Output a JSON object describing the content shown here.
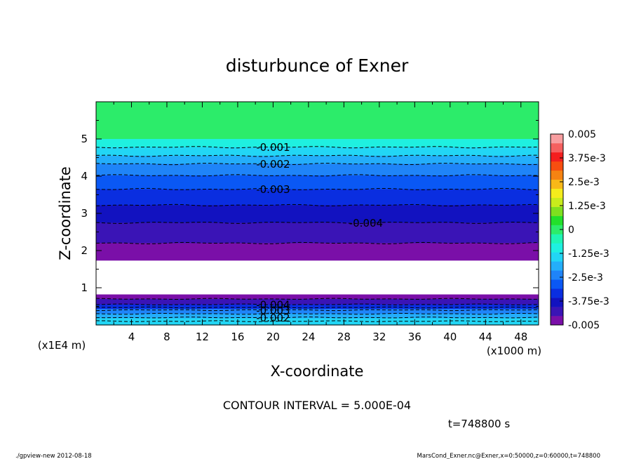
{
  "chart_data": {
    "type": "contour",
    "title": "disturbunce of Exner",
    "xlabel": "X-coordinate",
    "ylabel": "Z-coordinate",
    "x_unit_label": "(x1000 m)",
    "y_unit_label": "(x1E4 m)",
    "xlim": [
      0,
      50
    ],
    "ylim": [
      0,
      6
    ],
    "x_ticks": [
      4,
      8,
      12,
      16,
      20,
      24,
      28,
      32,
      36,
      40,
      44,
      48
    ],
    "y_ticks": [
      1,
      2,
      3,
      4,
      5
    ],
    "contour_interval_text": "CONTOUR INTERVAL = 5.000E-04",
    "time_text": "t=748800 s",
    "footer_left": "./gpview-new   2012-08-18",
    "footer_right": "MarsCond_Exner.nc@Exner,x=0:50000,z=0:60000,t=748800",
    "colorbar": {
      "min": -0.005,
      "max": 0.005,
      "tick_labels": [
        "0.005",
        "3.75e-3",
        "2.5e-3",
        "1.25e-3",
        "0",
        "-1.25e-3",
        "-2.5e-3",
        "-3.75e-3",
        "-0.005"
      ],
      "colors": [
        "#7a0fa8",
        "#3a14b6",
        "#1212c0",
        "#0a2ee0",
        "#0a58f4",
        "#1f84f8",
        "#24aefa",
        "#22d6f5",
        "#1ff0e0",
        "#1ff5b4",
        "#2cec6a",
        "#22e02a",
        "#7fe01f",
        "#c8ec1c",
        "#f4ec1c",
        "#f8b818",
        "#f68312",
        "#f84e10",
        "#f41e1e",
        "#f5605f",
        "#f89ea0"
      ]
    },
    "bands": [
      {
        "z": [
          5.0,
          6.0
        ],
        "value": 0.0
      },
      {
        "z": [
          4.78,
          5.0
        ],
        "value": -0.00075
      },
      {
        "z": [
          4.55,
          4.78
        ],
        "value": -0.00125
      },
      {
        "z": [
          4.33,
          4.55
        ],
        "value": -0.00175
      },
      {
        "z": [
          4.02,
          4.33
        ],
        "value": -0.00225
      },
      {
        "z": [
          3.65,
          4.02
        ],
        "value": -0.00275
      },
      {
        "z": [
          3.22,
          3.65
        ],
        "value": -0.00325
      },
      {
        "z": [
          2.75,
          3.22
        ],
        "value": -0.00375
      },
      {
        "z": [
          2.2,
          2.75
        ],
        "value": -0.00425
      },
      {
        "z": [
          1.73,
          2.2
        ],
        "value": -0.00475
      },
      {
        "z": [
          0.82,
          1.73
        ],
        "value": null
      },
      {
        "z": [
          0.7,
          0.82
        ],
        "value": -0.00475
      },
      {
        "z": [
          0.55,
          0.7
        ],
        "value": -0.00425
      },
      {
        "z": [
          0.43,
          0.55
        ],
        "value": -0.00325
      },
      {
        "z": [
          0.3,
          0.43
        ],
        "value": -0.00225
      },
      {
        "z": [
          0.18,
          0.3
        ],
        "value": -0.00175
      },
      {
        "z": [
          0.0,
          0.18
        ],
        "value": -0.00125
      }
    ],
    "contour_lines": [
      {
        "level": -0.001,
        "z": 4.78,
        "label": "-0.001",
        "label_x": 20
      },
      {
        "level": -0.0015,
        "z": 4.55
      },
      {
        "level": -0.002,
        "z": 4.33,
        "label": "-0.002",
        "label_x": 20
      },
      {
        "level": -0.0025,
        "z": 4.02
      },
      {
        "level": -0.003,
        "z": 3.65,
        "label": "-0.003",
        "label_x": 20
      },
      {
        "level": -0.0035,
        "z": 3.22
      },
      {
        "level": -0.004,
        "z": 2.75,
        "label": "-0.004",
        "label_x": 30.5
      },
      {
        "level": -0.0045,
        "z": 2.2
      },
      {
        "level": -0.0045,
        "z": 0.7
      },
      {
        "level": -0.004,
        "z": 0.55,
        "label": "-0.004",
        "label_x": 20
      },
      {
        "level": -0.0035,
        "z": 0.47
      },
      {
        "level": -0.003,
        "z": 0.4,
        "label": "-0.003",
        "label_x": 20
      },
      {
        "level": -0.0025,
        "z": 0.3
      },
      {
        "level": -0.002,
        "z": 0.2,
        "label": "-0.002",
        "label_x": 20
      },
      {
        "level": -0.0015,
        "z": 0.1
      }
    ]
  }
}
